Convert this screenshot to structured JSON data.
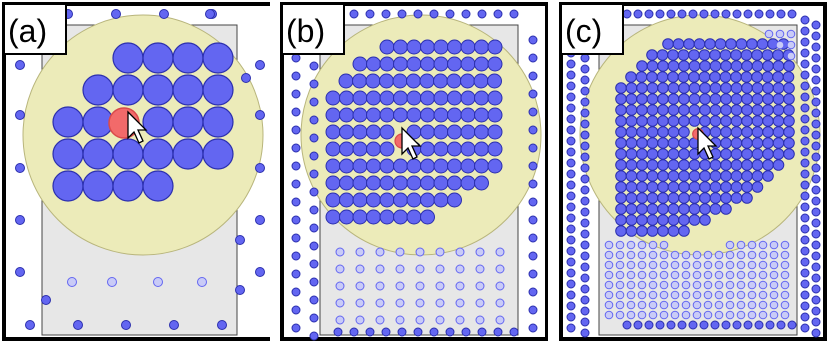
{
  "colors": {
    "dot": "#6366f1",
    "dot_dark": "#2b2fae",
    "cursor_dot": "#f26a6a",
    "cursor_ring": "#d94a4a",
    "lens": "#ecebb9",
    "lens_stroke": "#b8b57c",
    "rect_fill": "#e7e7e7",
    "rect_stroke": "#444444",
    "frame": "#000000",
    "faint_dot": "#c9cbf7"
  },
  "panels": [
    {
      "label": "(a)",
      "cursor": "arrow-cursor-icon"
    },
    {
      "label": "(b)",
      "cursor": "arrow-cursor-icon"
    },
    {
      "label": "(c)",
      "cursor": "arrow-cursor-icon"
    }
  ]
}
